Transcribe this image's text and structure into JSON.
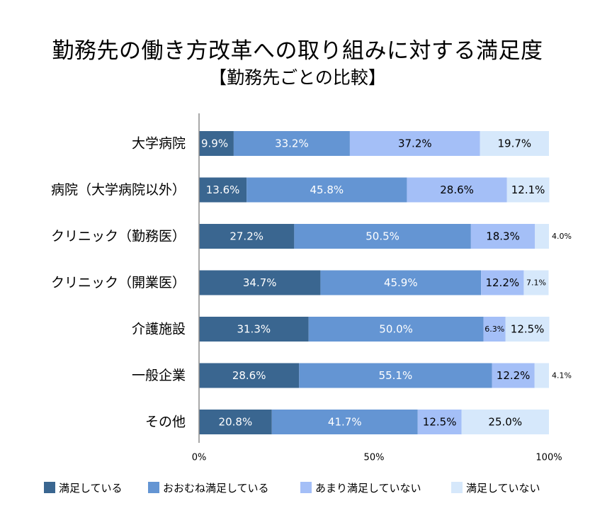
{
  "title": "勤務先の働き方改革への取り組みに対する満足度",
  "subtitle": "【勤務先ごとの比較】",
  "chart_data": {
    "type": "bar",
    "orientation": "horizontal",
    "stacked": true,
    "percent_stacked": true,
    "title": "勤務先の働き方改革への取り組みに対する満足度",
    "subtitle": "【勤務先ごとの比較】",
    "categories": [
      "大学病院",
      "病院（大学病院以外）",
      "クリニック（勤務医）",
      "クリニック（開業医）",
      "介護施設",
      "一般企業",
      "その他"
    ],
    "series": [
      {
        "name": "満足している",
        "color": "#3a6690",
        "values": [
          9.9,
          13.6,
          27.2,
          34.7,
          31.3,
          28.6,
          20.8
        ],
        "labels": [
          "9.9%",
          "13.6%",
          "27.2%",
          "34.7%",
          "31.3%",
          "28.6%",
          "20.8%"
        ]
      },
      {
        "name": "おおむね満足している",
        "color": "#6495d3",
        "values": [
          33.2,
          45.8,
          50.5,
          45.9,
          50.0,
          55.1,
          41.7
        ],
        "labels": [
          "33.2%",
          "45.8%",
          "50.5%",
          "45.9%",
          "50.0%",
          "55.1%",
          "41.7%"
        ]
      },
      {
        "name": "あまり満足していない",
        "color": "#a4bff7",
        "values": [
          37.2,
          28.6,
          18.3,
          12.2,
          6.3,
          12.2,
          12.5
        ],
        "labels": [
          "37.2%",
          "28.6%",
          "18.3%",
          "12.2%",
          "6.3%",
          "12.2%",
          "12.5%"
        ]
      },
      {
        "name": "満足していない",
        "color": "#d6e8fb",
        "values": [
          19.7,
          12.1,
          4.0,
          7.1,
          12.5,
          4.1,
          25.0
        ],
        "labels": [
          "19.7%",
          "12.1%",
          "4.0%",
          "7.1%",
          "12.5%",
          "4.1%",
          "25.0%"
        ]
      }
    ],
    "x_ticks": [
      "0%",
      "50%",
      "100%"
    ],
    "xlim": [
      0,
      100
    ],
    "legend_position": "bottom",
    "grid": false
  }
}
